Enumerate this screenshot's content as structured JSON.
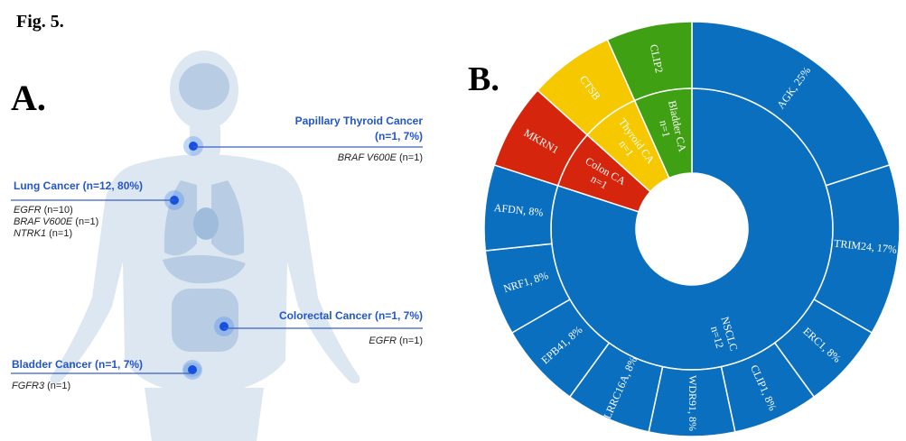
{
  "figure_label": "Fig. 5.",
  "panel_a": {
    "label": "A.",
    "sites": [
      {
        "title": "Papillary Thyroid Cancer",
        "stats": "(n=1, 7%)",
        "genes": [
          {
            "name": "BRAF V600E",
            "count": "(n=1)"
          }
        ]
      },
      {
        "title": "Lung Cancer (n=12, 80%)",
        "genes": [
          {
            "name": "EGFR",
            "count": "(n=10)"
          },
          {
            "name": "BRAF V600E",
            "count": "(n=1)"
          },
          {
            "name": "NTRK1",
            "count": "(n=1)"
          }
        ]
      },
      {
        "title": "Colorectal Cancer (n=1, 7%)",
        "genes": [
          {
            "name": "EGFR",
            "count": "(n=1)"
          }
        ]
      },
      {
        "title": "Bladder Cancer (n=1, 7%)",
        "genes": [
          {
            "name": "FGFR3",
            "count": "(n=1)"
          }
        ]
      }
    ]
  },
  "chart_data": {
    "type": "sunburst",
    "panel_label": "B.",
    "inner": [
      {
        "name": "NSCLC",
        "note": "n=12",
        "value": 12,
        "color": "#0b6fc0"
      },
      {
        "name": "Colon CA",
        "note": "n=1",
        "value": 1,
        "color": "#d5260d"
      },
      {
        "name": "Thyroid CA",
        "note": "n=1",
        "value": 1,
        "color": "#f6c800"
      },
      {
        "name": "Bladder CA",
        "note": "n=1",
        "value": 1,
        "color": "#40a014"
      }
    ],
    "outer": [
      {
        "name": "AGK, 25%",
        "value": 3,
        "color": "#0b6fc0"
      },
      {
        "name": "TRIM24, 17%",
        "value": 2,
        "color": "#0b6fc0"
      },
      {
        "name": "ERC1, 8%",
        "value": 1,
        "color": "#0b6fc0"
      },
      {
        "name": "CLIP1, 8%",
        "value": 1,
        "color": "#0b6fc0"
      },
      {
        "name": "WDR91, 8%",
        "value": 1,
        "color": "#0b6fc0"
      },
      {
        "name": "LRRC16A, 8%",
        "value": 1,
        "color": "#0b6fc0"
      },
      {
        "name": "EPB41, 8%",
        "value": 1,
        "color": "#0b6fc0"
      },
      {
        "name": "NRF1, 8%",
        "value": 1,
        "color": "#0b6fc0"
      },
      {
        "name": "AFDN, 8%",
        "value": 1,
        "color": "#0b6fc0"
      },
      {
        "name": "MKRN1",
        "value": 1,
        "color": "#d5260d"
      },
      {
        "name": "CTSB",
        "value": 1,
        "color": "#f6c800"
      },
      {
        "name": "CLIP2",
        "value": 1,
        "color": "#40a014"
      }
    ]
  }
}
